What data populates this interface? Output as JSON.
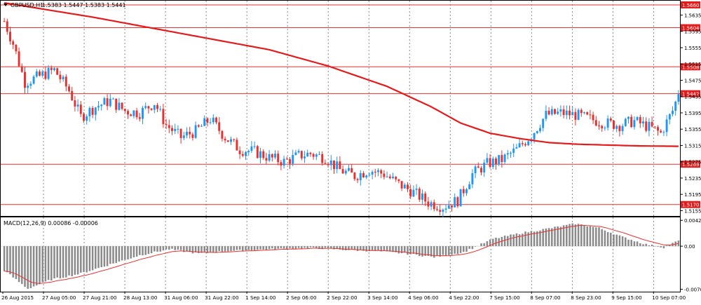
{
  "chart_title": "GBPUSD,H1",
  "ohlc_text": "1.5383 1.5447 1.5383 1.5441",
  "macd_label": "MACD(12,26,9) 0.00086 -0.00006",
  "colors": {
    "bull": "#2196F3",
    "bear": "#E8312F",
    "ma": "#E31B1B",
    "level": "#E8312F",
    "level_box": "#E31B1B",
    "macd_hist": "#8A8A8A",
    "macd_signal": "#E8312F",
    "grid": "#3A3A3A",
    "axis": "#000000"
  },
  "chart_data": {
    "type": "candlestick",
    "symbol": "GBPUSD",
    "timeframe": "H1",
    "price_ticks": [
      "1.5635",
      "1.5595",
      "1.5555",
      "1.5515",
      "1.5475",
      "1.5435",
      "1.5395",
      "1.5355",
      "1.5315",
      "1.5275",
      "1.5235",
      "1.5195",
      "1.5155"
    ],
    "price_tick_values": [
      1.5635,
      1.5595,
      1.5555,
      1.5515,
      1.5475,
      1.5435,
      1.5395,
      1.5355,
      1.5315,
      1.5275,
      1.5235,
      1.5195,
      1.5155
    ],
    "levels": [
      {
        "label": "1.5660",
        "value": 1.566
      },
      {
        "label": "1.5604",
        "value": 1.5604
      },
      {
        "label": "1.5508",
        "value": 1.5508
      },
      {
        "label": "1.5442",
        "value": 1.5442
      },
      {
        "label": "1.5269",
        "value": 1.5269
      },
      {
        "label": "1.5170",
        "value": 1.517
      }
    ],
    "time_labels": [
      "26 Aug 2015",
      "27 Aug 05:00",
      "27 Aug 21:00",
      "28 Aug 13:00",
      "31 Aug 06:00",
      "31 Aug 22:00",
      "1 Sep 14:00",
      "2 Sep 06:00",
      "2 Sep 22:00",
      "3 Sep 14:00",
      "4 Sep 06:00",
      "4 Sep 22:00",
      "7 Sep 15:00",
      "8 Sep 07:00",
      "8 Sep 23:00",
      "9 Sep 15:00",
      "10 Sep 07:00"
    ],
    "close_path": [
      [
        0,
        1.562
      ],
      [
        3,
        1.5565
      ],
      [
        7,
        1.547
      ],
      [
        12,
        1.5485
      ],
      [
        17,
        1.55
      ],
      [
        22,
        1.545
      ],
      [
        26,
        1.5385
      ],
      [
        31,
        1.541
      ],
      [
        36,
        1.5425
      ],
      [
        41,
        1.54
      ],
      [
        46,
        1.5395
      ],
      [
        51,
        1.542
      ],
      [
        55,
        1.5365
      ],
      [
        60,
        1.5335
      ],
      [
        65,
        1.535
      ],
      [
        70,
        1.538
      ],
      [
        75,
        1.5335
      ],
      [
        80,
        1.5305
      ],
      [
        85,
        1.53
      ],
      [
        90,
        1.5285
      ],
      [
        95,
        1.5275
      ],
      [
        100,
        1.529
      ],
      [
        104,
        1.5295
      ],
      [
        109,
        1.5285
      ],
      [
        114,
        1.5255
      ],
      [
        119,
        1.524
      ],
      [
        124,
        1.5255
      ],
      [
        129,
        1.5245
      ],
      [
        134,
        1.522
      ],
      [
        139,
        1.52
      ],
      [
        144,
        1.5175
      ],
      [
        149,
        1.5165
      ],
      [
        154,
        1.518
      ],
      [
        159,
        1.5245
      ],
      [
        164,
        1.527
      ],
      [
        169,
        1.528
      ],
      [
        174,
        1.5305
      ],
      [
        179,
        1.534
      ],
      [
        184,
        1.539
      ],
      [
        189,
        1.5395
      ],
      [
        194,
        1.539
      ],
      [
        199,
        1.538
      ],
      [
        204,
        1.537
      ],
      [
        209,
        1.5365
      ],
      [
        214,
        1.5375
      ],
      [
        219,
        1.536
      ],
      [
        223,
        1.5345
      ],
      [
        227,
        1.54
      ],
      [
        229,
        1.5441
      ]
    ],
    "ma_period_values": [
      [
        0,
        1.5665
      ],
      [
        30,
        1.563
      ],
      [
        60,
        1.559
      ],
      [
        90,
        1.555
      ],
      [
        110,
        1.551
      ],
      [
        130,
        1.546
      ],
      [
        145,
        1.541
      ],
      [
        155,
        1.537
      ],
      [
        165,
        1.5345
      ],
      [
        175,
        1.5332
      ],
      [
        185,
        1.5322
      ],
      [
        195,
        1.5318
      ],
      [
        205,
        1.5316
      ],
      [
        215,
        1.5314
      ],
      [
        229,
        1.5313
      ]
    ],
    "macd_ticks": [
      "0.00426",
      "0.00",
      "-0.00709"
    ],
    "macd_tick_values": [
      0.00426,
      0.0,
      -0.00709
    ],
    "macd_range": [
      -0.00709,
      0.00426
    ],
    "macd_path": [
      [
        0,
        -0.004
      ],
      [
        8,
        -0.007
      ],
      [
        16,
        -0.0055
      ],
      [
        26,
        -0.0045
      ],
      [
        36,
        -0.003
      ],
      [
        46,
        -0.0015
      ],
      [
        56,
        -0.0005
      ],
      [
        66,
        -0.0012
      ],
      [
        76,
        -0.0008
      ],
      [
        86,
        -0.0006
      ],
      [
        96,
        -0.0004
      ],
      [
        106,
        -0.0003
      ],
      [
        116,
        -0.0006
      ],
      [
        126,
        -0.0008
      ],
      [
        136,
        -0.0012
      ],
      [
        146,
        -0.0018
      ],
      [
        156,
        -0.001
      ],
      [
        166,
        0.0012
      ],
      [
        176,
        0.0022
      ],
      [
        186,
        0.003
      ],
      [
        194,
        0.0037
      ],
      [
        202,
        0.003
      ],
      [
        210,
        0.0015
      ],
      [
        218,
        0.0003
      ],
      [
        224,
        -0.0002
      ],
      [
        229,
        0.0009
      ]
    ],
    "last_price": 1.5441
  }
}
